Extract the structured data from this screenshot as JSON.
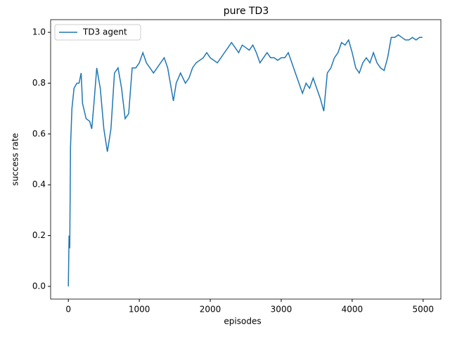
{
  "chart_data": {
    "type": "line",
    "title": "pure TD3",
    "xlabel": "episodes",
    "ylabel": "success rate",
    "x": [
      0,
      10,
      20,
      30,
      50,
      80,
      120,
      150,
      180,
      200,
      250,
      300,
      330,
      360,
      400,
      450,
      500,
      550,
      600,
      650,
      700,
      750,
      800,
      850,
      900,
      950,
      1000,
      1050,
      1100,
      1150,
      1200,
      1250,
      1300,
      1350,
      1400,
      1450,
      1480,
      1520,
      1580,
      1650,
      1700,
      1750,
      1800,
      1900,
      1950,
      2000,
      2100,
      2150,
      2200,
      2250,
      2300,
      2350,
      2400,
      2450,
      2500,
      2550,
      2600,
      2650,
      2700,
      2750,
      2800,
      2850,
      2900,
      2950,
      3000,
      3050,
      3100,
      3150,
      3200,
      3250,
      3300,
      3350,
      3400,
      3450,
      3500,
      3550,
      3600,
      3650,
      3700,
      3750,
      3800,
      3850,
      3900,
      3950,
      4000,
      4050,
      4100,
      4150,
      4200,
      4250,
      4300,
      4350,
      4400,
      4450,
      4500,
      4550,
      4600,
      4650,
      4700,
      4750,
      4800,
      4850,
      4900,
      4950,
      4990
    ],
    "series": [
      {
        "name": "TD3 agent",
        "color": "#1f77b4",
        "values": [
          0,
          0.2,
          0.15,
          0.55,
          0.7,
          0.78,
          0.8,
          0.8,
          0.84,
          0.72,
          0.66,
          0.65,
          0.62,
          0.72,
          0.86,
          0.78,
          0.62,
          0.53,
          0.62,
          0.84,
          0.86,
          0.78,
          0.66,
          0.68,
          0.86,
          0.86,
          0.88,
          0.92,
          0.88,
          0.86,
          0.84,
          0.86,
          0.88,
          0.9,
          0.86,
          0.78,
          0.73,
          0.8,
          0.84,
          0.8,
          0.82,
          0.86,
          0.88,
          0.9,
          0.92,
          0.9,
          0.88,
          0.9,
          0.92,
          0.94,
          0.96,
          0.94,
          0.92,
          0.95,
          0.94,
          0.93,
          0.95,
          0.92,
          0.88,
          0.9,
          0.92,
          0.9,
          0.9,
          0.89,
          0.9,
          0.9,
          0.92,
          0.88,
          0.84,
          0.8,
          0.76,
          0.8,
          0.78,
          0.82,
          0.78,
          0.74,
          0.69,
          0.84,
          0.86,
          0.9,
          0.92,
          0.96,
          0.95,
          0.97,
          0.92,
          0.86,
          0.84,
          0.88,
          0.9,
          0.88,
          0.92,
          0.88,
          0.86,
          0.85,
          0.9,
          0.98,
          0.98,
          0.99,
          0.98,
          0.97,
          0.97,
          0.98,
          0.97,
          0.98,
          0.98
        ]
      }
    ],
    "xlim": [
      -250,
      5250
    ],
    "xticks": [
      0,
      1000,
      2000,
      3000,
      4000,
      5000
    ],
    "ylim": [
      -0.05,
      1.05
    ],
    "yticks": [
      {
        "value": 0,
        "label": "0.0"
      },
      0.2,
      0.4,
      0.6,
      0.8,
      {
        "value": 1,
        "label": "1.0"
      }
    ],
    "legend": "upper left"
  }
}
